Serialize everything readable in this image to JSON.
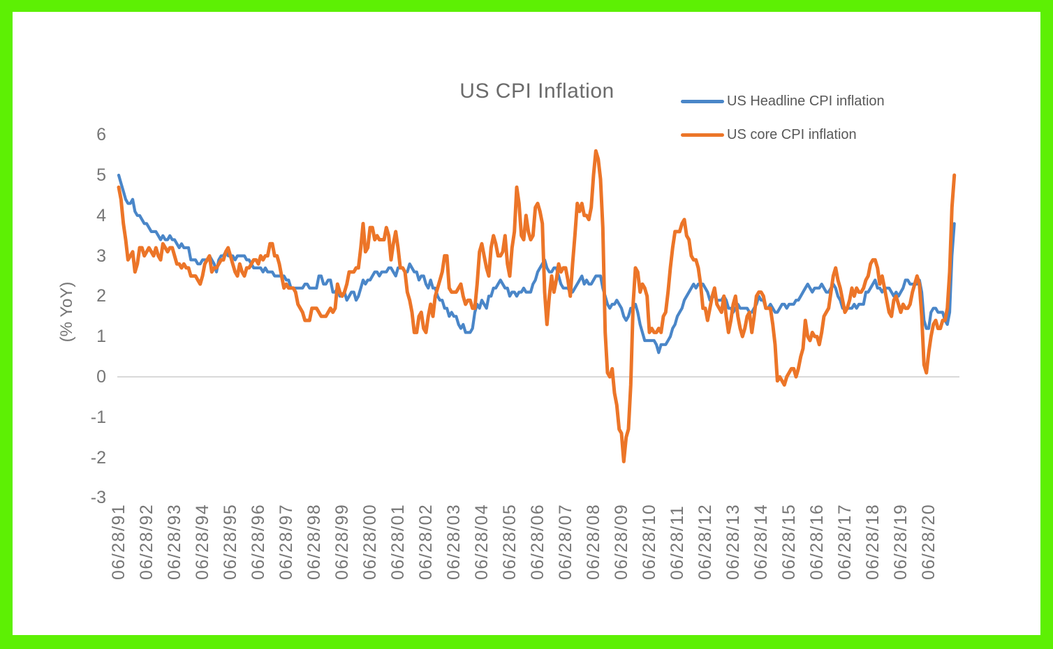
{
  "colors": {
    "frame_border": "#5df004",
    "background": "#ffffff",
    "gridline": "#d9d9d9",
    "title_text": "#6b6b6b",
    "tick_text": "#767676",
    "legend_text": "#595959"
  },
  "chart_data": {
    "type": "line",
    "title": "US CPI Inflation",
    "xlabel": "",
    "ylabel": "(% YoY)",
    "ylim": [
      -3,
      6
    ],
    "y_ticks": [
      6,
      5,
      4,
      3,
      2,
      1,
      0,
      -1,
      -2,
      -3
    ],
    "gridline_values": [
      0
    ],
    "grid": "zero-line-only",
    "legend_position": "top-right",
    "x_start": "06/28/91",
    "x_frequency": "monthly",
    "months_per_tick": 12,
    "x_tick_labels": [
      "06/28/91",
      "06/28/92",
      "06/28/93",
      "06/28/94",
      "06/28/95",
      "06/28/96",
      "06/28/97",
      "06/28/98",
      "06/28/99",
      "06/28/00",
      "06/28/01",
      "06/28/02",
      "06/28/03",
      "06/28/04",
      "06/28/05",
      "06/28/06",
      "06/28/07",
      "06/28/08",
      "06/28/09",
      "06/28/10",
      "06/28/11",
      "06/28/12",
      "06/28/13",
      "06/28/14",
      "06/28/15",
      "06/28/16",
      "06/28/17",
      "06/28/18",
      "06/28/19",
      "06/28/20"
    ],
    "series": [
      {
        "name": "US Headline CPI inflation",
        "color": "#4a86c8",
        "stroke_width": 4.2,
        "values": [
          5.0,
          4.8,
          4.6,
          4.4,
          4.3,
          4.3,
          4.4,
          4.1,
          4.0,
          4.0,
          3.9,
          3.8,
          3.8,
          3.7,
          3.6,
          3.6,
          3.6,
          3.5,
          3.4,
          3.5,
          3.4,
          3.4,
          3.5,
          3.4,
          3.4,
          3.3,
          3.2,
          3.3,
          3.2,
          3.2,
          3.2,
          2.9,
          2.9,
          2.9,
          2.8,
          2.8,
          2.9,
          2.9,
          2.9,
          3.0,
          2.9,
          2.8,
          2.6,
          2.9,
          3.0,
          3.0,
          3.1,
          3.0,
          3.0,
          3.0,
          2.9,
          3.0,
          3.0,
          3.0,
          3.0,
          2.9,
          2.9,
          2.8,
          2.7,
          2.7,
          2.7,
          2.7,
          2.6,
          2.7,
          2.6,
          2.6,
          2.6,
          2.5,
          2.5,
          2.5,
          2.5,
          2.5,
          2.4,
          2.4,
          2.2,
          2.2,
          2.2,
          2.2,
          2.2,
          2.2,
          2.3,
          2.3,
          2.2,
          2.2,
          2.2,
          2.2,
          2.5,
          2.5,
          2.3,
          2.3,
          2.4,
          2.4,
          2.1,
          2.1,
          2.2,
          2.0,
          2.0,
          2.1,
          1.9,
          2.0,
          2.1,
          2.1,
          1.9,
          2.0,
          2.2,
          2.4,
          2.3,
          2.4,
          2.4,
          2.5,
          2.6,
          2.6,
          2.5,
          2.6,
          2.6,
          2.6,
          2.7,
          2.7,
          2.6,
          2.5,
          2.7,
          2.7,
          2.7,
          2.6,
          2.6,
          2.8,
          2.7,
          2.6,
          2.6,
          2.4,
          2.5,
          2.5,
          2.3,
          2.2,
          2.4,
          2.2,
          2.2,
          2.0,
          1.9,
          1.9,
          1.7,
          1.7,
          1.5,
          1.6,
          1.5,
          1.5,
          1.3,
          1.2,
          1.3,
          1.1,
          1.1,
          1.1,
          1.2,
          1.6,
          1.8,
          1.7,
          1.9,
          1.8,
          1.7,
          2.0,
          2.0,
          2.2,
          2.2,
          2.3,
          2.4,
          2.3,
          2.2,
          2.2,
          2.0,
          2.1,
          2.1,
          2.0,
          2.1,
          2.1,
          2.2,
          2.1,
          2.1,
          2.1,
          2.3,
          2.4,
          2.6,
          2.7,
          2.8,
          2.9,
          2.7,
          2.6,
          2.6,
          2.7,
          2.7,
          2.5,
          2.3,
          2.2,
          2.2,
          2.2,
          2.1,
          2.1,
          2.2,
          2.3,
          2.4,
          2.5,
          2.3,
          2.4,
          2.3,
          2.3,
          2.4,
          2.5,
          2.5,
          2.5,
          2.2,
          2.0,
          1.8,
          1.7,
          1.8,
          1.8,
          1.9,
          1.8,
          1.7,
          1.5,
          1.4,
          1.5,
          1.7,
          1.7,
          1.8,
          1.6,
          1.3,
          1.1,
          0.9,
          0.9,
          0.9,
          0.9,
          0.9,
          0.8,
          0.6,
          0.8,
          0.8,
          0.8,
          0.9,
          1.0,
          1.2,
          1.3,
          1.5,
          1.6,
          1.7,
          1.9,
          2.0,
          2.1,
          2.2,
          2.3,
          2.2,
          2.3,
          2.3,
          2.3,
          2.2,
          2.1,
          1.9,
          2.0,
          2.0,
          1.9,
          1.9,
          1.9,
          2.0,
          1.9,
          1.7,
          1.7,
          1.6,
          1.7,
          1.8,
          1.7,
          1.7,
          1.7,
          1.7,
          1.6,
          1.6,
          1.7,
          1.8,
          2.0,
          1.9,
          1.9,
          1.7,
          1.7,
          1.8,
          1.7,
          1.6,
          1.6,
          1.7,
          1.8,
          1.8,
          1.7,
          1.8,
          1.8,
          1.8,
          1.9,
          1.9,
          2.0,
          2.1,
          2.2,
          2.3,
          2.2,
          2.1,
          2.2,
          2.2,
          2.2,
          2.3,
          2.2,
          2.1,
          2.1,
          2.2,
          2.3,
          2.2,
          2.0,
          1.9,
          1.7,
          1.7,
          1.7,
          1.7,
          1.7,
          1.8,
          1.7,
          1.8,
          1.8,
          1.8,
          2.1,
          2.1,
          2.2,
          2.3,
          2.4,
          2.2,
          2.2,
          2.1,
          2.2,
          2.2,
          2.2,
          2.1,
          2.0,
          2.1,
          2.0,
          2.1,
          2.2,
          2.4,
          2.4,
          2.3,
          2.3,
          2.3,
          2.3,
          2.4,
          2.1,
          1.4,
          1.2,
          1.2,
          1.6,
          1.7,
          1.7,
          1.6,
          1.6,
          1.6,
          1.4,
          1.3,
          1.6,
          3.0,
          3.8
        ]
      },
      {
        "name": "US core CPI inflation",
        "color": "#ec7528",
        "stroke_width": 5,
        "values": [
          4.7,
          4.4,
          3.8,
          3.4,
          2.9,
          3.0,
          3.1,
          2.6,
          2.8,
          3.2,
          3.2,
          3.0,
          3.1,
          3.2,
          3.1,
          3.0,
          3.2,
          3.0,
          2.9,
          3.3,
          3.2,
          3.1,
          3.2,
          3.2,
          3.0,
          2.8,
          2.8,
          2.7,
          2.8,
          2.7,
          2.7,
          2.5,
          2.5,
          2.5,
          2.4,
          2.3,
          2.5,
          2.8,
          2.9,
          3.0,
          2.6,
          2.7,
          2.7,
          2.8,
          2.9,
          2.9,
          3.1,
          3.2,
          3.0,
          2.8,
          2.6,
          2.5,
          2.8,
          2.6,
          2.5,
          2.7,
          2.7,
          2.8,
          2.9,
          2.9,
          2.8,
          3.0,
          2.9,
          3.0,
          3.0,
          3.3,
          3.3,
          3.0,
          3.0,
          2.8,
          2.5,
          2.2,
          2.3,
          2.2,
          2.2,
          2.2,
          2.1,
          1.8,
          1.7,
          1.6,
          1.4,
          1.4,
          1.4,
          1.7,
          1.7,
          1.7,
          1.6,
          1.5,
          1.5,
          1.5,
          1.6,
          1.7,
          1.6,
          1.7,
          2.3,
          2.1,
          2.0,
          2.1,
          2.3,
          2.6,
          2.6,
          2.6,
          2.7,
          2.7,
          3.2,
          3.8,
          3.1,
          3.2,
          3.7,
          3.7,
          3.4,
          3.5,
          3.4,
          3.4,
          3.4,
          3.7,
          3.5,
          2.9,
          3.3,
          3.6,
          3.2,
          2.7,
          2.7,
          2.6,
          2.1,
          1.9,
          1.6,
          1.1,
          1.1,
          1.5,
          1.6,
          1.2,
          1.1,
          1.5,
          1.8,
          1.5,
          2.0,
          2.2,
          2.4,
          2.6,
          3.0,
          3.0,
          2.2,
          2.1,
          2.1,
          2.1,
          2.2,
          2.3,
          2.0,
          1.8,
          1.9,
          1.9,
          1.7,
          1.7,
          2.3,
          3.1,
          3.3,
          3.0,
          2.7,
          2.5,
          3.2,
          3.5,
          3.3,
          3.0,
          3.0,
          3.1,
          3.5,
          2.8,
          2.5,
          3.2,
          3.6,
          4.7,
          4.3,
          3.5,
          3.4,
          4.0,
          3.6,
          3.4,
          3.5,
          4.2,
          4.3,
          4.1,
          3.8,
          2.1,
          1.3,
          2.0,
          2.5,
          2.1,
          2.4,
          2.8,
          2.6,
          2.7,
          2.7,
          2.4,
          2.0,
          2.8,
          3.5,
          4.3,
          4.1,
          4.3,
          4.0,
          4.0,
          3.9,
          4.2,
          5.0,
          5.6,
          5.4,
          4.9,
          3.7,
          1.1,
          0.1,
          0.0,
          0.2,
          -0.4,
          -0.7,
          -1.3,
          -1.4,
          -2.1,
          -1.5,
          -1.3,
          -0.2,
          1.8,
          2.7,
          2.6,
          2.1,
          2.3,
          2.2,
          2.0,
          1.1,
          1.2,
          1.1,
          1.1,
          1.2,
          1.1,
          1.5,
          1.6,
          2.1,
          2.7,
          3.2,
          3.6,
          3.6,
          3.6,
          3.8,
          3.9,
          3.5,
          3.4,
          3.0,
          2.9,
          2.9,
          2.7,
          2.3,
          1.7,
          1.7,
          1.4,
          1.7,
          2.0,
          2.2,
          1.8,
          1.7,
          1.6,
          2.0,
          1.5,
          1.1,
          1.4,
          1.8,
          2.0,
          1.5,
          1.2,
          1.0,
          1.2,
          1.5,
          1.6,
          1.1,
          1.5,
          2.0,
          2.1,
          2.1,
          2.0,
          1.7,
          1.7,
          1.7,
          1.3,
          0.8,
          -0.1,
          0.0,
          -0.1,
          -0.2,
          0.0,
          0.1,
          0.2,
          0.2,
          0.0,
          0.2,
          0.5,
          0.7,
          1.4,
          1.0,
          0.9,
          1.1,
          1.0,
          1.0,
          0.8,
          1.1,
          1.5,
          1.6,
          1.7,
          2.1,
          2.5,
          2.7,
          2.4,
          2.2,
          1.9,
          1.6,
          1.7,
          1.9,
          2.2,
          2.0,
          2.2,
          2.1,
          2.1,
          2.2,
          2.4,
          2.5,
          2.8,
          2.9,
          2.9,
          2.7,
          2.3,
          2.5,
          2.2,
          1.9,
          1.6,
          1.5,
          1.9,
          2.0,
          1.8,
          1.6,
          1.8,
          1.7,
          1.7,
          1.8,
          2.1,
          2.3,
          2.5,
          2.3,
          1.5,
          0.3,
          0.1,
          0.6,
          1.0,
          1.3,
          1.4,
          1.2,
          1.2,
          1.4,
          1.4,
          1.7,
          2.6,
          4.2,
          5.0
        ]
      }
    ]
  }
}
